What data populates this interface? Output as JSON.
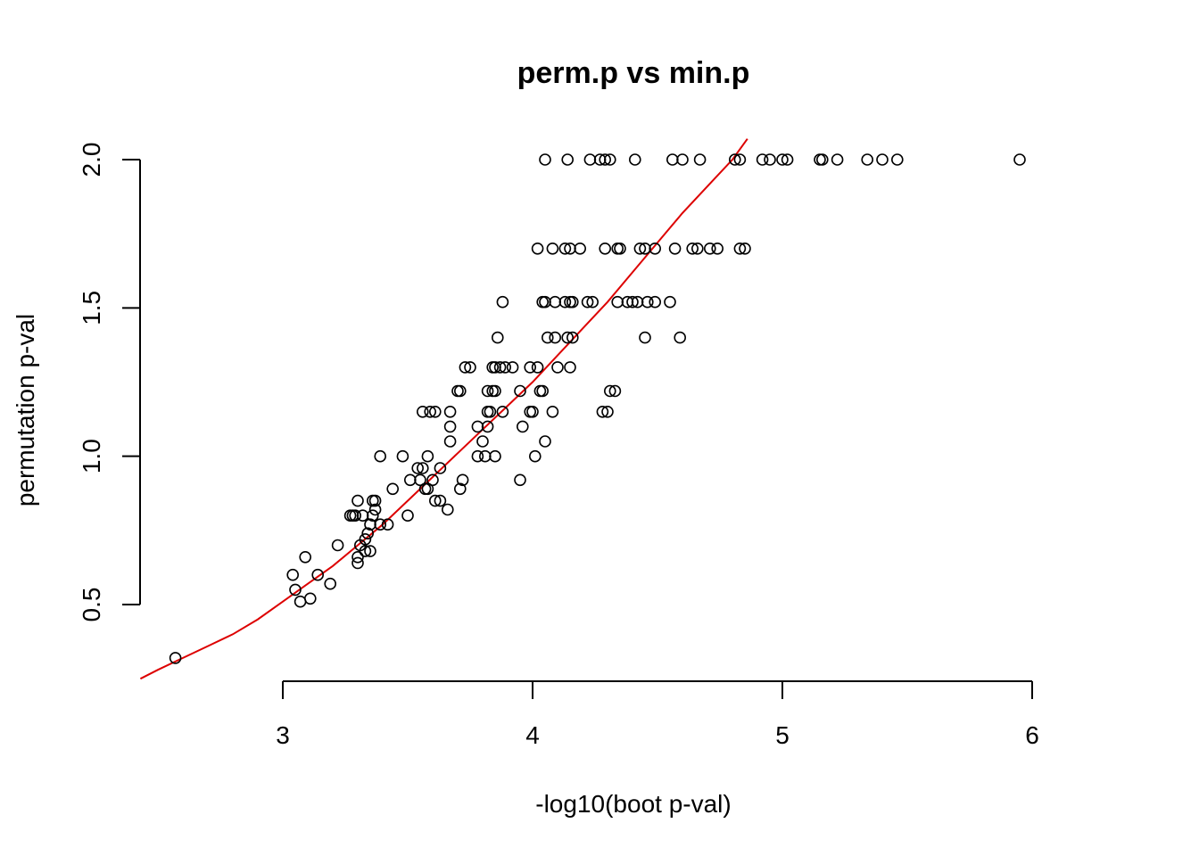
{
  "chart_data": {
    "type": "scatter",
    "title": "perm.p vs min.p",
    "xlabel": "-log10(boot p-val)",
    "ylabel": "permutation p-val",
    "xlim": [
      2.43,
      6.0
    ],
    "ylim": [
      0.25,
      2.07
    ],
    "xticks": [
      3,
      4,
      5,
      6
    ],
    "xtick_labels": [
      "3",
      "4",
      "5",
      "6"
    ],
    "yticks": [
      0.5,
      1.0,
      1.5,
      2.0
    ],
    "ytick_labels": [
      "0.5",
      "1.0",
      "1.5",
      "2.0"
    ],
    "grid": false,
    "legend": "none",
    "point_color": "#000000",
    "fit_color": "#dd0000",
    "series": [
      {
        "kind": "points",
        "x": [
          4.05,
          4.14,
          4.23,
          4.27,
          4.29,
          4.31,
          4.41,
          4.56,
          4.6,
          4.67,
          4.81,
          4.83,
          4.92,
          4.95,
          5.0,
          5.02,
          5.15,
          5.16,
          5.22,
          5.34,
          5.4,
          5.46,
          5.95,
          4.02,
          4.08,
          4.13,
          4.15,
          4.19,
          4.29,
          4.34,
          4.35,
          4.43,
          4.45,
          4.49,
          4.57,
          4.64,
          4.66,
          4.71,
          4.74,
          4.83,
          4.85,
          3.88,
          4.04,
          4.05,
          4.09,
          4.13,
          4.15,
          4.16,
          4.22,
          4.24,
          4.34,
          4.38,
          4.4,
          4.42,
          4.46,
          4.49,
          4.55,
          3.86,
          4.06,
          4.09,
          4.14,
          4.16,
          4.45,
          4.59,
          3.73,
          3.75,
          3.84,
          3.85,
          3.87,
          3.89,
          3.92,
          3.99,
          4.02,
          4.1,
          4.15,
          3.7,
          3.71,
          3.82,
          3.84,
          3.85,
          3.95,
          4.03,
          4.04,
          4.31,
          4.33,
          3.56,
          3.59,
          3.61,
          3.67,
          3.82,
          3.83,
          3.88,
          3.99,
          4.0,
          4.08,
          4.28,
          4.3,
          3.67,
          3.78,
          3.82,
          3.96,
          4.05,
          3.8,
          3.67,
          3.39,
          3.48,
          3.58,
          3.78,
          3.81,
          3.85,
          4.01,
          3.63,
          3.51,
          3.55,
          3.56,
          3.6,
          3.72,
          3.95,
          3.44,
          3.57,
          3.58,
          3.71,
          3.54,
          3.3,
          3.36,
          3.37,
          3.61,
          3.63,
          3.66,
          3.27,
          3.28,
          3.29,
          3.32,
          3.36,
          3.5,
          3.37,
          3.39,
          3.42,
          3.35,
          3.34,
          3.33,
          3.22,
          3.31,
          3.35,
          3.33,
          3.3,
          3.3,
          3.09,
          3.04,
          3.14,
          3.19,
          3.05,
          3.11,
          3.07,
          2.57
        ],
        "y": [
          2.0,
          2.0,
          2.0,
          2.0,
          2.0,
          2.0,
          2.0,
          2.0,
          2.0,
          2.0,
          2.0,
          2.0,
          2.0,
          2.0,
          2.0,
          2.0,
          2.0,
          2.0,
          2.0,
          2.0,
          2.0,
          2.0,
          2.0,
          1.7,
          1.7,
          1.7,
          1.7,
          1.7,
          1.7,
          1.7,
          1.7,
          1.7,
          1.7,
          1.7,
          1.7,
          1.7,
          1.7,
          1.7,
          1.7,
          1.7,
          1.7,
          1.52,
          1.52,
          1.52,
          1.52,
          1.52,
          1.52,
          1.52,
          1.52,
          1.52,
          1.52,
          1.52,
          1.52,
          1.52,
          1.52,
          1.52,
          1.52,
          1.4,
          1.4,
          1.4,
          1.4,
          1.4,
          1.4,
          1.4,
          1.3,
          1.3,
          1.3,
          1.3,
          1.3,
          1.3,
          1.3,
          1.3,
          1.3,
          1.3,
          1.3,
          1.22,
          1.22,
          1.22,
          1.22,
          1.22,
          1.22,
          1.22,
          1.22,
          1.22,
          1.22,
          1.15,
          1.15,
          1.15,
          1.15,
          1.15,
          1.15,
          1.15,
          1.15,
          1.15,
          1.15,
          1.15,
          1.15,
          1.1,
          1.1,
          1.1,
          1.1,
          1.05,
          1.05,
          1.05,
          1.0,
          1.0,
          1.0,
          1.0,
          1.0,
          1.0,
          1.0,
          0.96,
          0.92,
          0.92,
          0.96,
          0.92,
          0.92,
          0.92,
          0.89,
          0.89,
          0.89,
          0.89,
          0.96,
          0.85,
          0.85,
          0.85,
          0.85,
          0.85,
          0.82,
          0.8,
          0.8,
          0.8,
          0.8,
          0.8,
          0.8,
          0.82,
          0.77,
          0.77,
          0.77,
          0.74,
          0.72,
          0.7,
          0.7,
          0.68,
          0.68,
          0.66,
          0.64,
          0.66,
          0.6,
          0.6,
          0.57,
          0.55,
          0.52,
          0.51,
          0.32
        ]
      },
      {
        "kind": "line",
        "x": [
          2.43,
          2.5,
          2.6,
          2.7,
          2.8,
          2.9,
          3.0,
          3.1,
          3.2,
          3.3,
          3.4,
          3.5,
          3.6,
          3.7,
          3.8,
          3.9,
          4.0,
          4.1,
          4.2,
          4.3,
          4.4,
          4.5,
          4.6,
          4.7,
          4.8,
          4.86
        ],
        "y": [
          0.25,
          0.28,
          0.32,
          0.36,
          0.4,
          0.45,
          0.51,
          0.57,
          0.63,
          0.7,
          0.77,
          0.85,
          0.93,
          1.01,
          1.09,
          1.17,
          1.25,
          1.34,
          1.43,
          1.52,
          1.62,
          1.72,
          1.82,
          1.91,
          2.0,
          2.07
        ]
      }
    ]
  }
}
